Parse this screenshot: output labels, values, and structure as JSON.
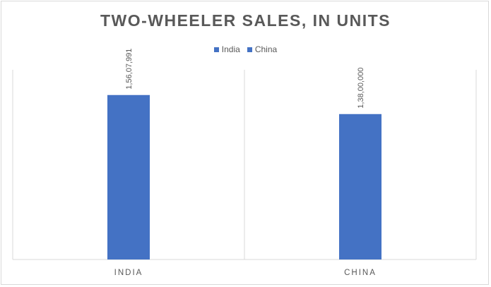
{
  "chart_data": {
    "type": "bar",
    "title": "TWO-WHEELER SALES, IN UNITS",
    "categories": [
      "INDIA",
      "CHINA"
    ],
    "series": [
      {
        "name": "India",
        "values": [
          15607991,
          null
        ],
        "data_labels": [
          "1,56,07,991",
          null
        ],
        "color": "#4472C4"
      },
      {
        "name": "China",
        "values": [
          null,
          13800000
        ],
        "data_labels": [
          null,
          "1,38,00,000"
        ],
        "color": "#4472C4"
      }
    ],
    "xlabel": "",
    "ylabel": "",
    "ylim": [
      0,
      18000000
    ],
    "grid": false,
    "legend_position": "top"
  }
}
